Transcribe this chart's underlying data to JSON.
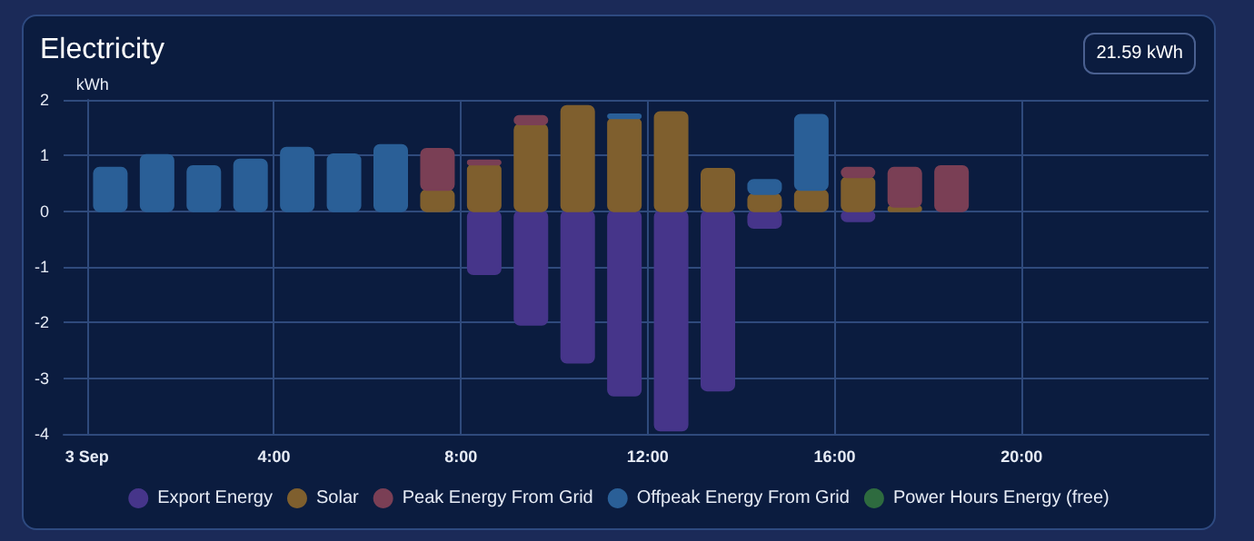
{
  "chart_data": {
    "type": "bar",
    "title": "Electricity",
    "ylabel": "kWh",
    "annotations": [
      "21.59 kWh"
    ],
    "x": [
      0.5,
      1.5,
      2.5,
      3.5,
      4.5,
      5.5,
      6.5,
      7.5,
      8.5,
      9.5,
      10.5,
      11.5,
      12.5,
      13.5,
      14.5,
      15.5,
      16.5,
      17.5,
      18.5
    ],
    "stacked": true,
    "series": [
      {
        "name": "Export Energy",
        "color": "#46358a",
        "values": [
          null,
          null,
          null,
          null,
          null,
          null,
          null,
          null,
          -1.13,
          -2.04,
          -2.72,
          -3.31,
          -3.94,
          -3.22,
          -0.3,
          null,
          -0.18,
          null,
          null
        ]
      },
      {
        "name": "Solar",
        "color": "#7f5f2e",
        "values": [
          null,
          null,
          null,
          null,
          null,
          null,
          null,
          0.38,
          0.84,
          1.56,
          1.89,
          1.67,
          1.78,
          0.76,
          0.31,
          0.38,
          0.61,
          0.08,
          null
        ]
      },
      {
        "name": "Peak Energy From Grid",
        "color": "#7a3f55",
        "values": [
          null,
          null,
          null,
          null,
          null,
          null,
          null,
          0.74,
          0.07,
          0.15,
          null,
          null,
          null,
          null,
          null,
          null,
          0.17,
          0.7,
          0.81
        ]
      },
      {
        "name": "Offpeak Energy From Grid",
        "color": "#2a5f97",
        "values": [
          0.78,
          1.01,
          0.81,
          0.93,
          1.14,
          1.02,
          1.19,
          null,
          null,
          null,
          null,
          0.07,
          null,
          null,
          0.25,
          1.35,
          null,
          null,
          null
        ]
      },
      {
        "name": "Power Hours Energy (free)",
        "color": "#2e6b3f",
        "values": [
          null,
          null,
          null,
          null,
          null,
          null,
          null,
          null,
          null,
          null,
          null,
          null,
          null,
          null,
          null,
          null,
          null,
          null,
          null
        ]
      }
    ],
    "xlim": [
      -0.5,
      24
    ],
    "xticks": [
      {
        "value": 0,
        "label": "3 Sep"
      },
      {
        "value": 4,
        "label": "4:00"
      },
      {
        "value": 8,
        "label": "8:00"
      },
      {
        "value": 12,
        "label": "12:00"
      },
      {
        "value": 16,
        "label": "16:00"
      },
      {
        "value": 20,
        "label": "20:00"
      }
    ],
    "ylim": [
      -4,
      2
    ],
    "yticks": [
      -4,
      -3,
      -2,
      -1,
      0,
      1,
      2
    ],
    "grid": true,
    "legend": "bottom"
  }
}
